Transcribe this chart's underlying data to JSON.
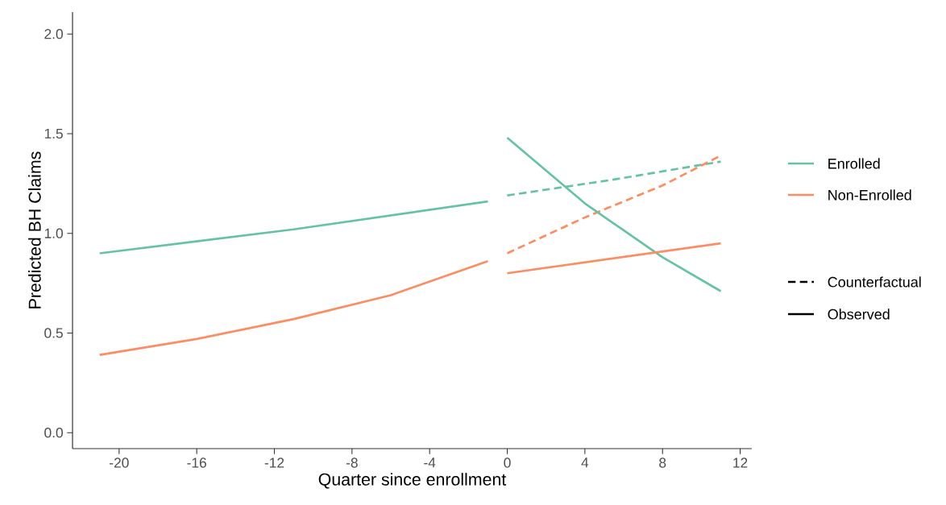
{
  "chart_data": {
    "type": "line",
    "xlabel": "Quarter since enrollment",
    "ylabel": "Predicted BH Claims",
    "xlim": [
      -22.4,
      12.6
    ],
    "ylim": [
      -0.08,
      2.11
    ],
    "xticks": [
      -20,
      -16,
      -12,
      -8,
      -4,
      0,
      4,
      8,
      12
    ],
    "yticks": [
      {
        "value": 0,
        "label": "0.0"
      },
      0.5,
      {
        "value": 1,
        "label": "1.0"
      },
      1.5,
      {
        "value": 2,
        "label": "2.0"
      }
    ],
    "grid": false,
    "legend": "right",
    "marker": "none",
    "annotations": [
      "Counterfactual",
      "Observed"
    ],
    "series": [
      {
        "name": "Enrolled",
        "color": "#66c2a5",
        "line_style": "dashed",
        "x": [
          0,
          5.5,
          11
        ],
        "values": [
          1.19,
          1.27,
          1.36
        ]
      },
      {
        "name": "Non-Enrolled",
        "color": "#fc8d62",
        "line_style": "dashed",
        "x": [
          0,
          4,
          8,
          11
        ],
        "values": [
          0.9,
          1.08,
          1.24,
          1.39
        ]
      },
      {
        "color": "#66c2a5",
        "line_style": "solid",
        "x": [
          -21,
          -16,
          -11,
          -6,
          -1
        ],
        "values": [
          0.9,
          0.96,
          1.02,
          1.09,
          1.16
        ]
      },
      {
        "color": "#66c2a5",
        "line_style": "solid",
        "x": [
          0,
          4,
          8,
          11
        ],
        "values": [
          1.48,
          1.15,
          0.88,
          0.71
        ]
      },
      {
        "color": "#fc8d62",
        "line_style": "solid",
        "x": [
          -21,
          -16,
          -11,
          -6,
          -1
        ],
        "values": [
          0.39,
          0.47,
          0.57,
          0.69,
          0.86
        ]
      },
      {
        "color": "#fc8d62",
        "line_style": "solid",
        "x": [
          0,
          11
        ],
        "values": [
          0.8,
          0.95
        ]
      }
    ]
  }
}
